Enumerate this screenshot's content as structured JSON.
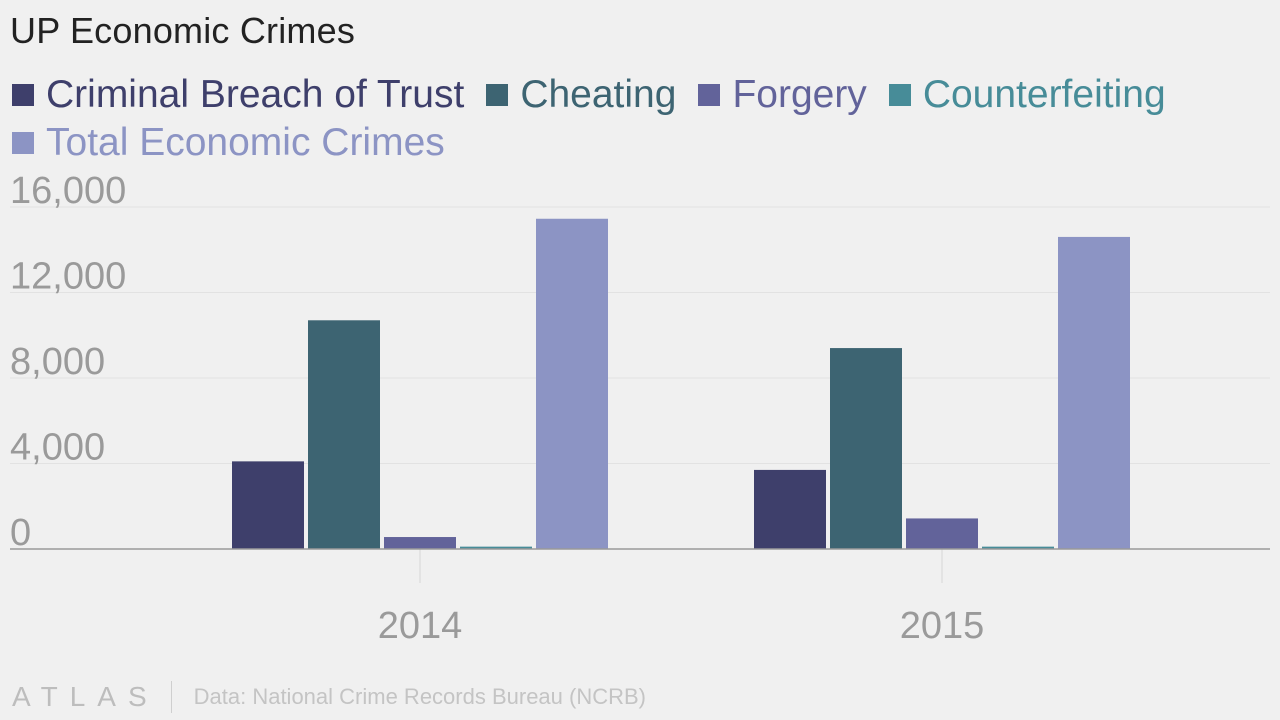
{
  "chart_data": {
    "type": "bar",
    "title": "UP Economic Crimes",
    "categories": [
      "2014",
      "2015"
    ],
    "series": [
      {
        "name": "Criminal Breach of Trust",
        "color": "#3e3f6b",
        "values": [
          4100,
          3700
        ]
      },
      {
        "name": "Cheating",
        "color": "#3d6472",
        "values": [
          10700,
          9400
        ]
      },
      {
        "name": "Forgery",
        "color": "#62639a",
        "values": [
          560,
          1430
        ]
      },
      {
        "name": "Counterfeiting",
        "color": "#478c98",
        "values": [
          110,
          110
        ]
      },
      {
        "name": "Total Economic Crimes",
        "color": "#8c94c4",
        "values": [
          15450,
          14600
        ]
      }
    ],
    "yticks": [
      0,
      4000,
      8000,
      12000,
      16000
    ],
    "ytick_labels": [
      "0",
      "4,000",
      "8,000",
      "12,000",
      "16,000"
    ],
    "ylim": [
      0,
      16000
    ],
    "grid": true,
    "legend": "top-left"
  },
  "colors": {
    "legend_text": [
      "#3e3f6b",
      "#3d6472",
      "#62639a",
      "#478c98",
      "#8c94c4"
    ]
  },
  "footer": {
    "brand": "ATLAS",
    "source": "Data: National Crime Records Bureau (NCRB)"
  }
}
